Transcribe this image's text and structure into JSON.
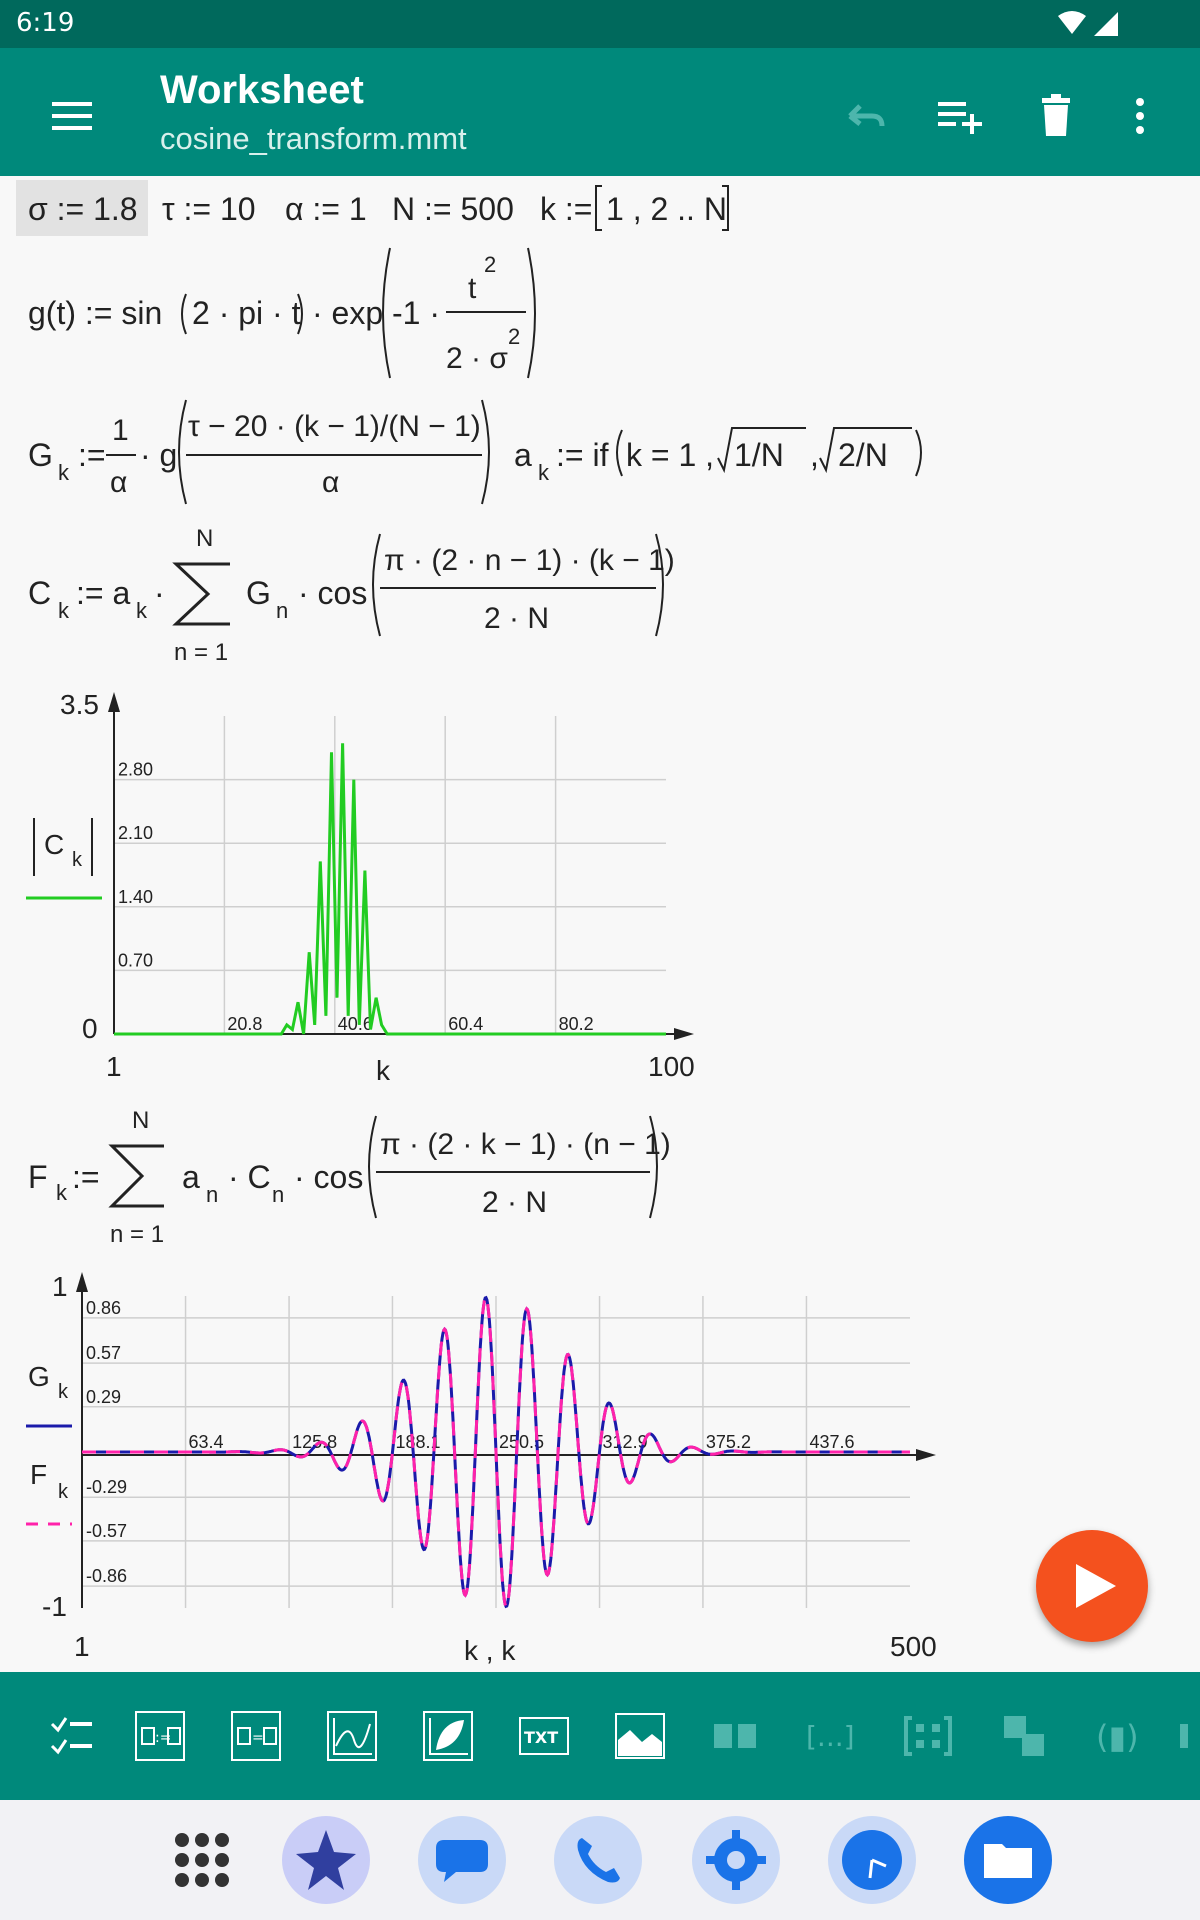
{
  "status": {
    "time": "6:19"
  },
  "appbar": {
    "title": "Worksheet",
    "subtitle": "cosine_transform.mmt"
  },
  "toolbar": {
    "undo_icon": "undo-icon",
    "add_icon": "playlist-add-icon",
    "delete_icon": "delete-icon",
    "more_icon": "more-vert-icon"
  },
  "defs": {
    "sigma": "σ := 1.8",
    "tau": "τ := 10",
    "alpha": "α := 1",
    "n": "N := 500",
    "k_pre": "k := ",
    "k_range": "1 , 2 .. N"
  },
  "formula_g": {
    "lhs": "g(t) := sin",
    "arg": "2 · pi · t",
    "mid": "· exp",
    "minus": "-1 ·",
    "num": "t",
    "num_exp": "2",
    "den": "2 · σ",
    "den_exp": "2"
  },
  "formula_G": {
    "lhs": "G",
    "sub": "k",
    "assign": ":=",
    "one": "1",
    "alpha": "α",
    "g": "· g",
    "num": "τ − 20 · (k − 1)/(N − 1)",
    "den": "α"
  },
  "formula_a": {
    "lhs": "a",
    "sub": "k",
    "rest": ":= if",
    "args": "k = 1 , ",
    "r1": "1/N",
    "comma": ",",
    "r2": "2/N"
  },
  "formula_C": {
    "lhs": "C",
    "sub": "k",
    "assign": ":= a",
    "sub2": "k",
    "dot": "·",
    "upper": "N",
    "lower": "n = 1",
    "g": "G",
    "gsub": "n",
    "cos": "· cos",
    "num": "π · (2 · n − 1) · (k − 1)",
    "den": "2 · N"
  },
  "formula_F": {
    "lhs": "F",
    "sub": "k",
    "assign": ":=",
    "upper": "N",
    "lower": "n = 1",
    "terms": "a",
    "s1": "n",
    "c": "· C",
    "s2": "n",
    "cos": "· cos",
    "num": "π · (2 · k − 1) · (n − 1)",
    "den": "2 · N"
  },
  "chart_data": [
    {
      "type": "line",
      "series": [
        {
          "name": "|C k|",
          "color": "#22cc22"
        }
      ],
      "ymax_label": "3.5",
      "ymin_label": "0",
      "y_ticks": [
        "2.80",
        "2.10",
        "1.40",
        "0.70"
      ],
      "x_ticks": [
        "20.8",
        "40.6",
        "60.4",
        "80.2"
      ],
      "xmin_label": "1",
      "xmax_label": "100",
      "xlabel": "k",
      "ylim": [
        0,
        3.5
      ],
      "xlim": [
        1,
        100
      ],
      "x": [
        31,
        32,
        33,
        34,
        35,
        36,
        37,
        38,
        39,
        40,
        41,
        42,
        43,
        44,
        45,
        46,
        47,
        48,
        49,
        50
      ],
      "y": [
        0,
        0.1,
        0.05,
        0.35,
        0,
        0.9,
        0.1,
        1.9,
        0.2,
        3.1,
        0.4,
        3.2,
        0.2,
        2.8,
        0.1,
        1.8,
        0.05,
        0.4,
        0.1,
        0
      ]
    },
    {
      "type": "line",
      "series": [
        {
          "name": "G k",
          "color": "#1a1aaa",
          "style": "solid"
        },
        {
          "name": "F k",
          "color": "#ff22aa",
          "style": "dashed"
        }
      ],
      "ymax_label": "1",
      "ymin_label": "-1",
      "y_ticks": [
        "0.86",
        "0.57",
        "0.29",
        "-0.29",
        "-0.57",
        "-0.86"
      ],
      "x_ticks": [
        "63.4",
        "125.8",
        "188.1",
        "250.5",
        "312.9",
        "375.2",
        "437.6"
      ],
      "xmin_label": "1",
      "xmax_label": "500",
      "xlabel": "k , k",
      "ylim": [
        -1,
        1
      ],
      "xlim": [
        1,
        500
      ]
    }
  ],
  "palette": [
    "checklist-icon",
    "define-icon",
    "equation-icon",
    "plot-icon",
    "plot3d-icon",
    "text-icon",
    "image-icon",
    "matrix-icon",
    "range-icon",
    "grid-icon",
    "stack-icon",
    "paren-icon"
  ],
  "nav": [
    "apps-icon",
    "starburst-icon",
    "messages-icon",
    "phone-icon",
    "settings-icon",
    "clock-icon",
    "files-icon"
  ]
}
